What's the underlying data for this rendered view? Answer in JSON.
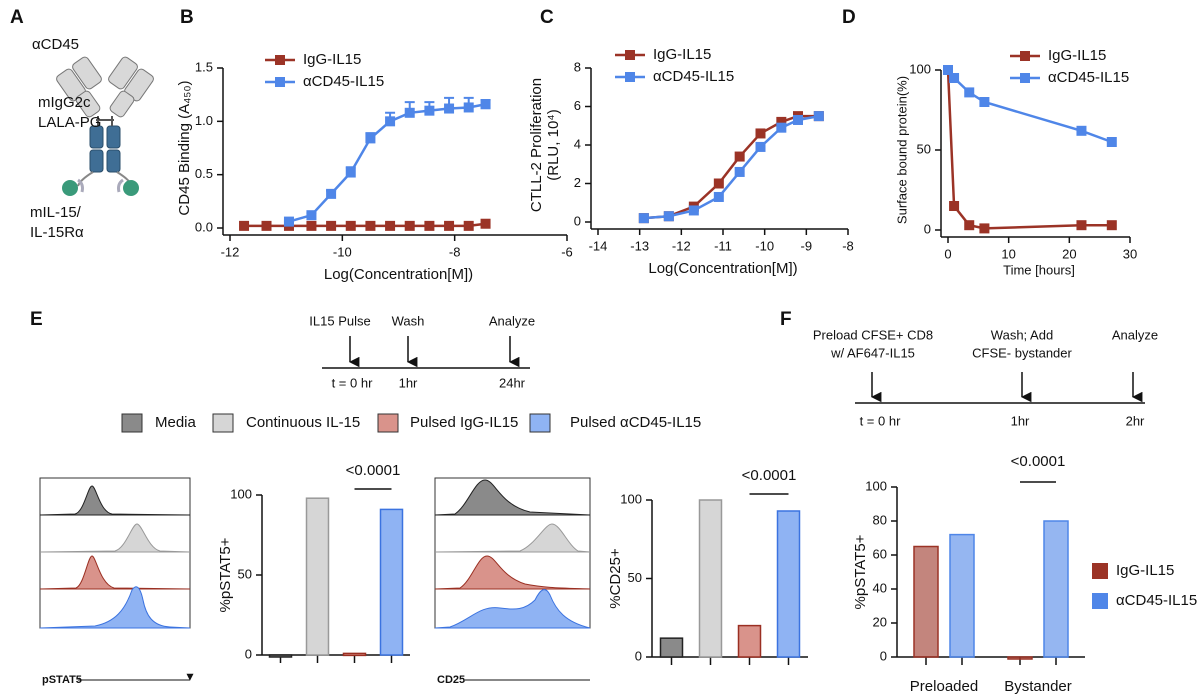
{
  "panel_labels": [
    "A",
    "B",
    "C",
    "D",
    "E",
    "F"
  ],
  "panel_a": {
    "labels": [
      "αCD45",
      "mIgG2c",
      "LALA-PG",
      "mIL-15/",
      "IL-15Rα"
    ]
  },
  "panel_e": {
    "timeline": {
      "events": [
        "IL15 Pulse",
        "Wash",
        "Analyze"
      ],
      "times": [
        "t = 0 hr",
        "1hr",
        "24hr"
      ]
    },
    "legend": {
      "names": [
        "Media",
        "Continuous IL-15",
        "Pulsed IgG-IL15",
        "Pulsed αCD45-IL15"
      ],
      "colors": [
        "#8a8a8a",
        "#d6d6d6",
        "#d9938b",
        "#8fb3f3"
      ]
    },
    "histogram_labels": [
      "pSTAT5",
      "CD25"
    ]
  },
  "panel_f": {
    "timeline": {
      "events": [
        [
          "Preload CFSE+ CD8",
          "w/ AF647-IL15"
        ],
        [
          "Wash; Add",
          "CFSE- bystander"
        ],
        [
          "Analyze"
        ]
      ],
      "times": [
        "t = 0 hr",
        "1hr",
        "2hr"
      ]
    }
  },
  "chart_data": [
    {
      "type": "line",
      "ylabel": "CD45 Binding (A₄₅₀)",
      "xlabel": "Log(Concentration[M])",
      "x": [
        -11.75,
        -11.35,
        -10.95,
        -10.55,
        -10.2,
        -9.85,
        -9.5,
        -9.15,
        -8.8,
        -8.45,
        -8.1,
        -7.75,
        -7.45
      ],
      "series": [
        {
          "name": "IgG-IL15",
          "color": "#9b3326",
          "values": [
            0.02,
            0.02,
            0.02,
            0.02,
            0.02,
            0.02,
            0.02,
            0.02,
            0.02,
            0.02,
            0.02,
            0.02,
            0.04
          ]
        },
        {
          "name": "αCD45-IL15",
          "color": "#4f86e8",
          "values": [
            null,
            null,
            0.06,
            0.12,
            0.32,
            0.52,
            0.84,
            1.0,
            1.08,
            1.1,
            1.12,
            1.13,
            1.16
          ],
          "errors": [
            null,
            null,
            0.01,
            0.02,
            0.03,
            0.05,
            0.05,
            0.08,
            0.1,
            0.08,
            0.1,
            0.09,
            0.04
          ]
        }
      ],
      "xlim": [
        -12,
        -6
      ],
      "xticks": [
        -12,
        -10,
        -8,
        -6
      ],
      "ylim": [
        0,
        1.5
      ],
      "yticks": [
        {
          "value": 0,
          "label": "0.0"
        },
        0.5,
        {
          "value": 1,
          "label": "1.0"
        },
        1.5
      ],
      "legend": "top-left"
    },
    {
      "type": "line",
      "ylabel": [
        "CTLL-2 Proliferation",
        "(RLU, 10⁴)"
      ],
      "xlabel": "Log(Concentration[M])",
      "x": [
        -12.9,
        -12.3,
        -11.7,
        -11.1,
        -10.6,
        -10.1,
        -9.6,
        -9.2,
        -8.7
      ],
      "series": [
        {
          "name": "IgG-IL15",
          "color": "#9b3326",
          "values": [
            0.2,
            0.3,
            0.8,
            2.0,
            3.4,
            4.6,
            5.2,
            5.5,
            5.5
          ]
        },
        {
          "name": "αCD45-IL15",
          "color": "#4f86e8",
          "values": [
            0.2,
            0.3,
            0.6,
            1.3,
            2.6,
            3.9,
            4.9,
            5.3,
            5.5
          ]
        }
      ],
      "xlim": [
        -14,
        -8
      ],
      "xticks": [
        -14,
        -13,
        -12,
        -11,
        -10,
        -9,
        -8
      ],
      "ylim": [
        0,
        8
      ],
      "yticks": [
        0,
        2,
        4,
        6,
        8
      ],
      "legend": "top-left"
    },
    {
      "type": "line",
      "ylabel": "Surface bound protein(%)",
      "xlabel": "Time [hours]",
      "x": [
        0,
        1,
        3.5,
        6,
        22,
        27
      ],
      "series": [
        {
          "name": "IgG-IL15",
          "color": "#9b3326",
          "values": [
            100,
            15,
            3,
            1,
            3,
            3
          ]
        },
        {
          "name": "αCD45-IL15",
          "color": "#4f86e8",
          "values": [
            100,
            95,
            86,
            80,
            62,
            55
          ]
        }
      ],
      "xlim": [
        0,
        30
      ],
      "xticks": [
        0,
        10,
        20,
        30
      ],
      "ylim": [
        0,
        100
      ],
      "yticks": [
        0,
        50,
        100
      ],
      "legend": "top-right"
    },
    {
      "type": "bar",
      "ylabel": "%pSTAT5+",
      "categories": [
        null,
        null,
        null,
        null
      ],
      "values": [
        0,
        98,
        1,
        91
      ],
      "colors": [
        "#8a8a8a",
        "#d6d6d6",
        "#d9938b",
        "#8fb3f3"
      ],
      "edge_colors": [
        "#222222",
        "#999999",
        "#9a2f22",
        "#3b73e0"
      ],
      "ylim": [
        0,
        100
      ],
      "yticks": [
        0,
        50,
        100
      ],
      "annotation": "<0.0001"
    },
    {
      "type": "bar",
      "ylabel": "%CD25+",
      "categories": [
        null,
        null,
        null,
        null
      ],
      "values": [
        12,
        100,
        20,
        93
      ],
      "colors": [
        "#8a8a8a",
        "#d6d6d6",
        "#d9938b",
        "#8fb3f3"
      ],
      "edge_colors": [
        "#222222",
        "#999999",
        "#9a2f22",
        "#3b73e0"
      ],
      "ylim": [
        0,
        100
      ],
      "yticks": [
        0,
        50,
        100
      ],
      "annotation": "<0.0001"
    },
    {
      "type": "grouped_bar",
      "ylabel": "%pSTAT5+",
      "categories": [
        "Preloaded",
        "Bystander"
      ],
      "series": [
        {
          "name": "IgG-IL15",
          "color": "#9b3326",
          "values": [
            65,
            0
          ]
        },
        {
          "name": "αCD45-IL15",
          "color": "#4f86e8",
          "values": [
            72,
            80
          ]
        }
      ],
      "ylim": [
        0,
        100
      ],
      "yticks": [
        0,
        20,
        40,
        60,
        80,
        100
      ],
      "annotation": "<0.0001",
      "legend": "right"
    }
  ]
}
